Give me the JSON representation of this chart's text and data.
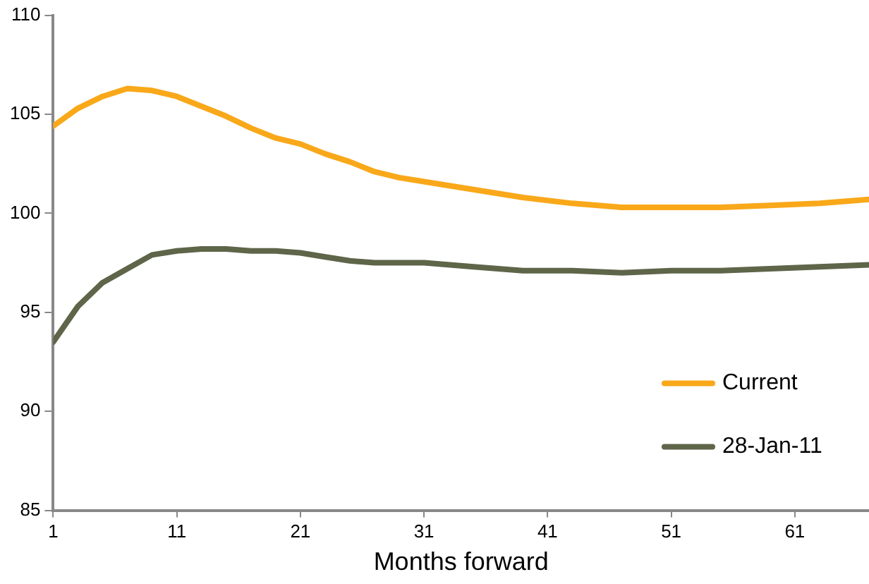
{
  "chart_data": {
    "type": "line",
    "xlabel": "Months forward",
    "x": [
      1,
      3,
      5,
      7,
      9,
      11,
      13,
      15,
      17,
      19,
      21,
      23,
      25,
      27,
      29,
      31,
      35,
      39,
      43,
      47,
      51,
      55,
      59,
      63,
      67
    ],
    "series": [
      {
        "name": "Current",
        "color": "#f9a81a",
        "values": [
          104.4,
          105.3,
          105.9,
          106.3,
          106.2,
          105.9,
          105.4,
          104.9,
          104.3,
          103.8,
          103.5,
          103.0,
          102.6,
          102.1,
          101.8,
          101.6,
          101.2,
          100.8,
          100.5,
          100.3,
          100.3,
          100.3,
          100.4,
          100.5,
          100.7
        ]
      },
      {
        "name": "28-Jan-11",
        "color": "#5e6549",
        "values": [
          93.5,
          95.3,
          96.5,
          97.2,
          97.9,
          98.1,
          98.2,
          98.2,
          98.1,
          98.1,
          98.0,
          97.8,
          97.6,
          97.5,
          97.5,
          97.5,
          97.3,
          97.1,
          97.1,
          97.0,
          97.1,
          97.1,
          97.2,
          97.3,
          97.4
        ]
      }
    ],
    "xlim": [
      1,
      67
    ],
    "xticks": [
      1,
      11,
      21,
      31,
      41,
      51,
      61
    ],
    "ylim": [
      85,
      110
    ],
    "yticks": [
      85,
      90,
      95,
      100,
      105,
      110
    ],
    "grid": false,
    "legend": "bottom right",
    "marker": "none",
    "line_style": "solid"
  }
}
